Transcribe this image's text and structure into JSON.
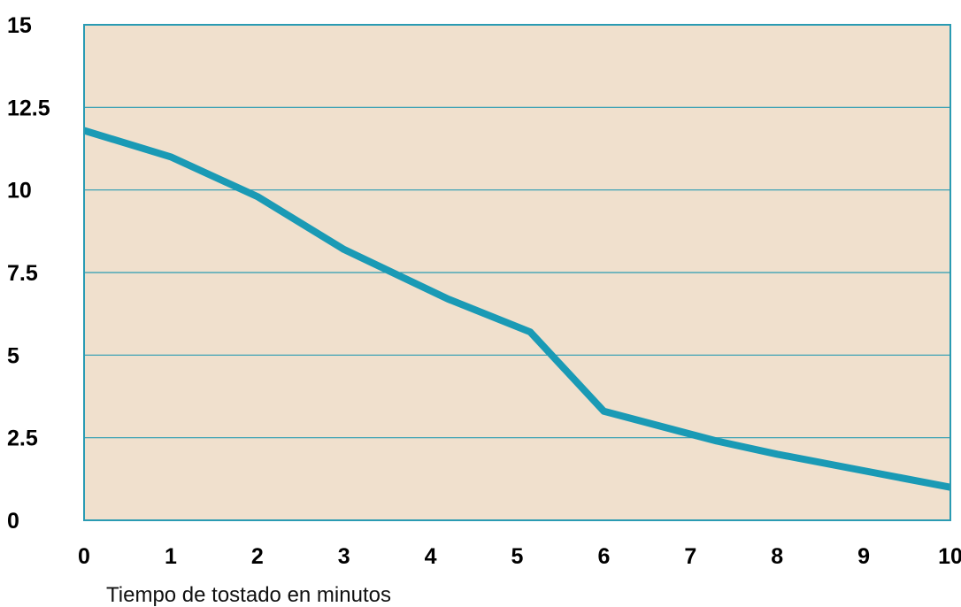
{
  "chart_data": {
    "type": "line",
    "title": "",
    "xlabel": "Tiempo de tostado en minutos",
    "ylabel": "",
    "xlim": [
      0,
      10
    ],
    "ylim": [
      0,
      15
    ],
    "x_ticks": [
      "0",
      "1",
      "2",
      "3",
      "4",
      "5",
      "6",
      "7",
      "8",
      "9",
      "10"
    ],
    "y_ticks": [
      "0",
      "2.5",
      "5",
      "7.5",
      "10",
      "12.5",
      "15"
    ],
    "grid": true,
    "legend": "none",
    "series": [
      {
        "x": [
          0,
          1,
          2,
          3,
          4.2,
          5.15,
          6,
          7.3,
          8,
          9,
          10
        ],
        "y": [
          11.8,
          11.0,
          9.8,
          8.2,
          6.7,
          5.7,
          3.3,
          2.4,
          2.0,
          1.5,
          1.0
        ],
        "color": "#1a9ab5"
      }
    ],
    "colors": {
      "plot_background": "#f0e0cd",
      "gridline": "#2a9bb3",
      "frame": "#2a9bb3",
      "line": "#1a9ab5"
    }
  }
}
